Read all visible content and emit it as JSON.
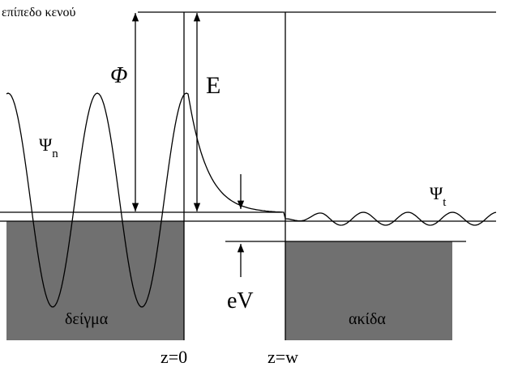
{
  "vacuum_level": "επίπεδο κενού",
  "work_function": "Φ",
  "energy": "E",
  "sample_wave": {
    "symbol": "Ψ",
    "subscript": "n"
  },
  "tip_wave": {
    "symbol": "Ψ",
    "subscript": "t"
  },
  "bias": "eV",
  "sample": "δείγμα",
  "tip": "ακίδα",
  "z_sample": "z=0",
  "z_tip": "z=w"
}
